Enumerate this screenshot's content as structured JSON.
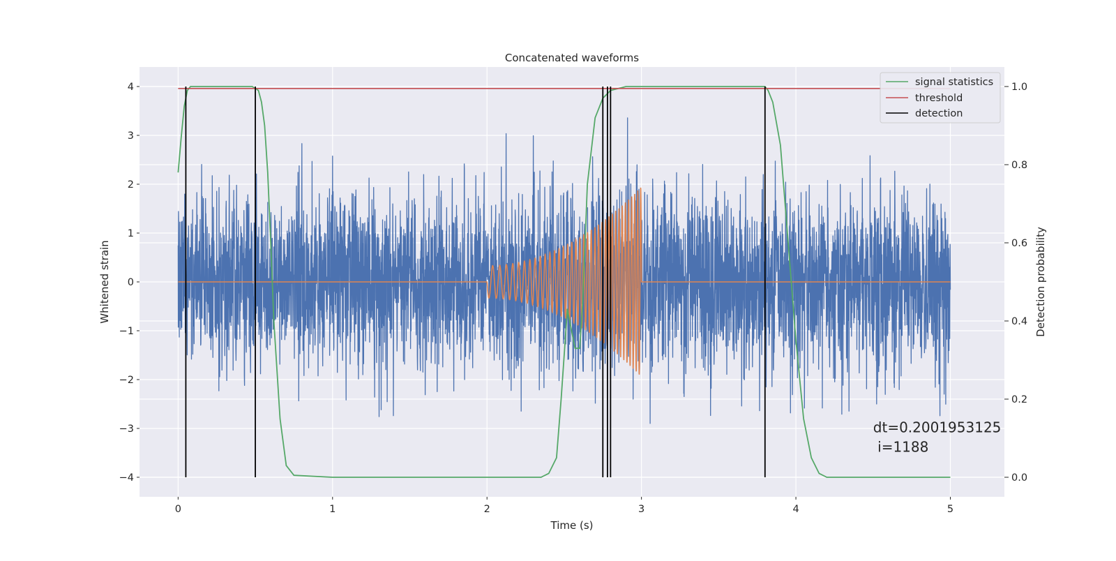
{
  "chart_data": {
    "type": "line",
    "title": "Concatenated waveforms",
    "xlabel": "Time (s)",
    "ylabel": "Whitened strain",
    "y2label": "Detection probability",
    "xlim": [
      -0.25,
      5.35
    ],
    "ylim": [
      -4.4,
      4.4
    ],
    "y2lim": [
      -0.05,
      1.05
    ],
    "xticks": [
      0,
      1,
      2,
      3,
      4,
      5
    ],
    "yticks": [
      4,
      3,
      2,
      1,
      0,
      -1,
      -2,
      -3,
      -4
    ],
    "y2ticks": [
      1.0,
      0.8,
      0.6,
      0.4,
      0.2,
      0.0
    ],
    "xtick_labels": [
      "0",
      "1",
      "2",
      "3",
      "4",
      "5"
    ],
    "ytick_labels": [
      "4",
      "3",
      "2",
      "1",
      "0",
      "−1",
      "−2",
      "−3",
      "−4"
    ],
    "y2tick_labels": [
      "1.0",
      "0.8",
      "0.6",
      "0.4",
      "0.2",
      "0.0"
    ],
    "grid": true,
    "legend_position": "top-right",
    "series": [
      {
        "name": "",
        "role": "whitened strain (noise + signal)",
        "axis": "left",
        "color": "#4c72b0",
        "x_range": [
          0,
          5
        ],
        "approx_std": 0.9,
        "approx_extremes": [
          -4.0,
          4.0
        ]
      },
      {
        "name": "",
        "role": "injected chirp waveform",
        "axis": "left",
        "color": "#dd8452",
        "segments": [
          {
            "x": [
              0,
              2
            ],
            "amplitude": 0
          },
          {
            "x": [
              2,
              3
            ],
            "amplitude_start": 0.33,
            "amplitude_end": 1.95,
            "cycles": 36
          },
          {
            "x": [
              3,
              5
            ],
            "amplitude": 0
          }
        ]
      },
      {
        "name": "signal statistics",
        "axis": "right",
        "color": "#55a868",
        "x": [
          0,
          0.02,
          0.04,
          0.06,
          0.08,
          0.1,
          0.2,
          0.4,
          0.48,
          0.52,
          0.54,
          0.56,
          0.58,
          0.6,
          0.62,
          0.66,
          0.7,
          0.75,
          1.0,
          2.0,
          2.35,
          2.4,
          2.45,
          2.48,
          2.52,
          2.57,
          2.6,
          2.62,
          2.65,
          2.7,
          2.75,
          2.8,
          2.9,
          3.0,
          3.5,
          3.8,
          3.82,
          3.85,
          3.9,
          3.95,
          4.0,
          4.05,
          4.1,
          4.15,
          4.2,
          5.0
        ],
        "y": [
          0.78,
          0.87,
          0.95,
          0.99,
          1.0,
          1.0,
          1.0,
          1.0,
          1.0,
          0.99,
          0.96,
          0.9,
          0.78,
          0.6,
          0.4,
          0.15,
          0.03,
          0.005,
          0.0,
          0.0,
          0.0,
          0.01,
          0.05,
          0.2,
          0.43,
          0.33,
          0.33,
          0.45,
          0.75,
          0.92,
          0.97,
          0.99,
          1.0,
          1.0,
          1.0,
          1.0,
          0.99,
          0.96,
          0.85,
          0.6,
          0.35,
          0.15,
          0.05,
          0.01,
          0.0,
          0.0
        ]
      },
      {
        "name": "threshold",
        "axis": "right",
        "color": "#c44e52",
        "x": [
          0,
          5
        ],
        "y": [
          0.995,
          0.995
        ]
      },
      {
        "name": "detection",
        "axis": "right",
        "color": "#000000",
        "type": "vlines",
        "x": [
          0.05,
          0.5,
          2.75,
          2.78,
          2.8,
          3.8
        ],
        "y_range": [
          0.0,
          1.0
        ]
      }
    ],
    "annotation": {
      "line1": "dt=0.2001953125",
      "line2": " i=1188",
      "x": 4.5,
      "y": -3.08
    }
  }
}
